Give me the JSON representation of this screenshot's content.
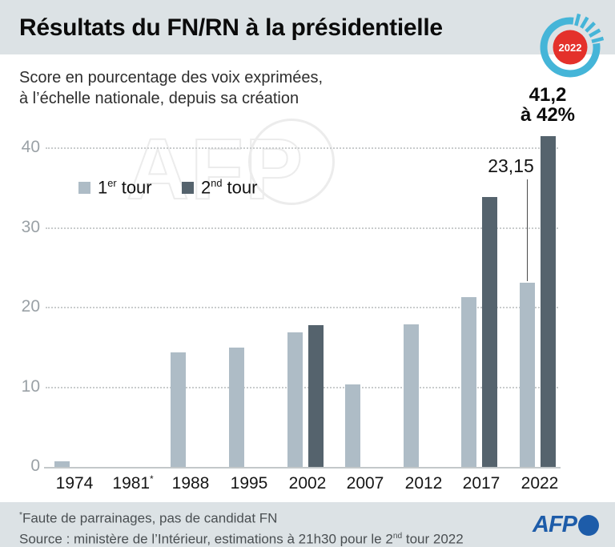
{
  "header": {
    "title": "Résultats du FN/RN à la présidentielle",
    "badge": {
      "year": "2022",
      "ring_color": "#45b5d8",
      "circle_color": "#e4312b",
      "text_color": "#ffffff"
    }
  },
  "subtitle": {
    "line1": "Score en pourcentage des voix exprimées,",
    "line2": "à l’échelle nationale, depuis sa création"
  },
  "watermark": {
    "text": "AFP"
  },
  "legend": {
    "items": [
      {
        "pre": "1",
        "sup": "er",
        "post": " tour",
        "color": "#aebcc6"
      },
      {
        "pre": "2",
        "sup": "nd",
        "post": " tour",
        "color": "#55636d"
      }
    ]
  },
  "chart_data": {
    "type": "bar",
    "title": "Résultats du FN/RN à la présidentielle",
    "subtitle": "Score en pourcentage des voix exprimées, à l’échelle nationale, depuis sa création",
    "categories": [
      "1974",
      "1981",
      "1988",
      "1995",
      "2002",
      "2007",
      "2012",
      "2017",
      "2022"
    ],
    "category_sups": [
      "",
      "*",
      "",
      "",
      "",
      "",
      "",
      "",
      ""
    ],
    "series": [
      {
        "name": "1er tour",
        "color": "#aebcc6",
        "values": [
          0.75,
          null,
          14.4,
          15.0,
          16.9,
          10.4,
          17.9,
          21.3,
          23.15
        ]
      },
      {
        "name": "2nd tour",
        "color": "#55636d",
        "values": [
          null,
          null,
          null,
          null,
          17.8,
          null,
          null,
          33.9,
          41.5
        ]
      }
    ],
    "xlabel": "",
    "ylabel": "Score en % des voix exprimées",
    "ylim": [
      0,
      42
    ],
    "yticks": [
      0,
      10,
      20,
      30,
      40
    ],
    "grid": "horizontal-dotted",
    "legend_position": "top-left",
    "annotations": [
      {
        "text": "23,15",
        "target": "2022 1er tour"
      },
      {
        "line1": "41,2",
        "line2": "à 42%",
        "target": "2022 2nd tour"
      }
    ]
  },
  "footer": {
    "note_sup": "*",
    "note": "Faute de parrainages, pas de candidat FN",
    "source_pre": "Source : ministère de l’Intérieur, estimations à 21h30 pour le 2",
    "source_sup": "nd",
    "source_post": " tour 2022",
    "afp_word": "AFP",
    "afp_color": "#1d5ca9"
  }
}
